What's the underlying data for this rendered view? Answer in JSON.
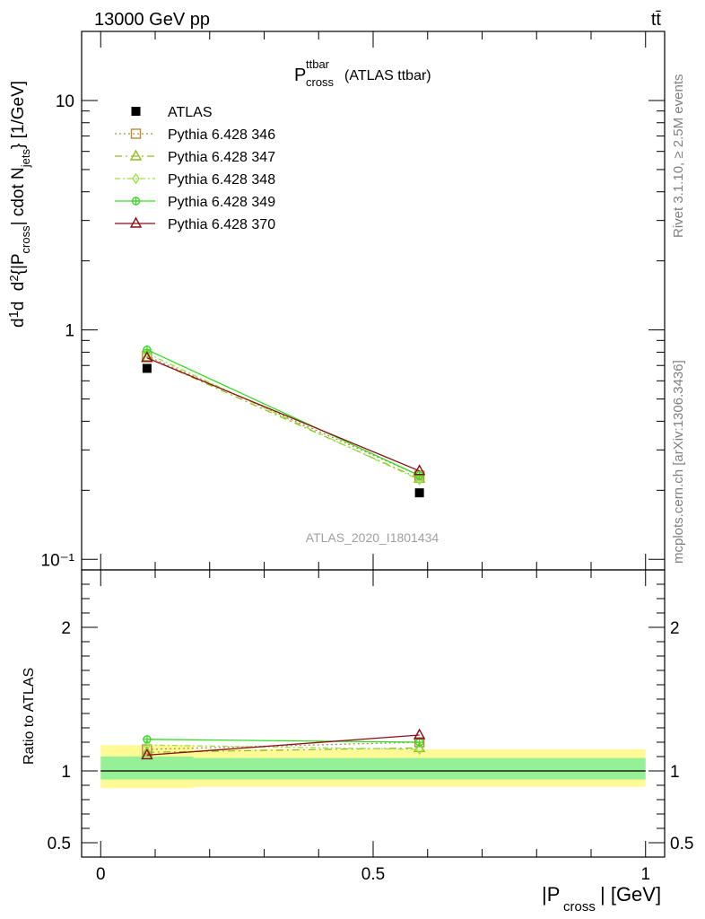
{
  "header": {
    "energy_label": "13000 GeV pp",
    "process_label": "tt̄"
  },
  "side": {
    "rivet_label": "Rivet 3.1.10, ≥ 2.5M events",
    "mcplots_label": "mcplots.cern.ch [arXiv:1306.3436]"
  },
  "chart_data": [
    {
      "type": "line",
      "panel": "main",
      "title_main": "P",
      "title_sup": "ttbar",
      "title_sub": "cross",
      "title_tail": "(ATLAS ttbar)",
      "watermark": "ATLAS_2020_I1801434",
      "ylabel": "d²σ / d|P_cross| cdot N_jets [1/GeV]",
      "yscale": "log",
      "ylim": [
        0.09,
        20
      ],
      "xlim": [
        -0.035,
        1.035
      ],
      "y_ticks": [
        {
          "value": 10,
          "label": "10"
        },
        {
          "value": 1,
          "label": "1"
        },
        {
          "value": 0.1,
          "label": "10⁻¹"
        }
      ],
      "legend_position": "top-left",
      "x": [
        0.085,
        0.585
      ],
      "series": [
        {
          "name": "ATLAS",
          "color": "#000000",
          "marker": "square",
          "dash": "",
          "values": [
            0.68,
            0.195
          ]
        },
        {
          "name": "Pythia 6.428 346",
          "color": "#b5884b",
          "marker": "open-square",
          "dash": "2,3",
          "values": [
            0.77,
            0.232
          ]
        },
        {
          "name": "Pythia 6.428 347",
          "color": "#8fbf1f",
          "marker": "open-triangle",
          "dash": "8,4,2,4",
          "values": [
            0.76,
            0.225
          ]
        },
        {
          "name": "Pythia 6.428 348",
          "color": "#9be04a",
          "marker": "open-diamond",
          "dash": "6,3,2,3",
          "values": [
            0.79,
            0.222
          ]
        },
        {
          "name": "Pythia 6.428 349",
          "color": "#33dd22",
          "marker": "open-circle-cross",
          "dash": "",
          "values": [
            0.82,
            0.232
          ]
        },
        {
          "name": "Pythia 6.428 370",
          "color": "#8b0d14",
          "marker": "open-triangle",
          "dash": "",
          "values": [
            0.755,
            0.243
          ]
        }
      ]
    },
    {
      "type": "line",
      "panel": "ratio",
      "ylabel": "Ratio to ATLAS",
      "xlabel_main": "|P",
      "xlabel_sub": "cross",
      "xlabel_tail": "| [GeV]",
      "ylim": [
        0.4,
        2.4
      ],
      "xlim": [
        -0.035,
        1.035
      ],
      "y_ticks": [
        {
          "value": 0.5,
          "label": "0.5"
        },
        {
          "value": 1,
          "label": "1"
        },
        {
          "value": 2,
          "label": "2"
        }
      ],
      "x_ticks": [
        {
          "value": 0,
          "label": "0"
        },
        {
          "value": 0.5,
          "label": "0.5"
        },
        {
          "value": 1,
          "label": "1"
        }
      ],
      "bands": [
        {
          "kind": "total-uncertainty",
          "color": "#fffa96",
          "bins": [
            [
              0,
              0.17,
              0.88,
              1.18
            ],
            [
              0.17,
              1.0,
              0.89,
              1.15
            ]
          ]
        },
        {
          "kind": "stat-uncertainty",
          "color": "#96f096",
          "bins": [
            [
              0,
              0.17,
              0.94,
              1.1
            ],
            [
              0.17,
              1.0,
              0.94,
              1.09
            ]
          ]
        }
      ],
      "reference": 1.0,
      "x": [
        0.085,
        0.585
      ],
      "series": [
        {
          "name": "Pythia 6.428 346",
          "color": "#b5884b",
          "marker": "open-square",
          "dash": "2,3",
          "values": [
            1.15,
            1.2
          ]
        },
        {
          "name": "Pythia 6.428 347",
          "color": "#8fbf1f",
          "marker": "open-triangle",
          "dash": "8,4,2,4",
          "values": [
            1.13,
            1.16
          ]
        },
        {
          "name": "Pythia 6.428 348",
          "color": "#9be04a",
          "marker": "open-diamond",
          "dash": "6,3,2,3",
          "values": [
            1.18,
            1.15
          ]
        },
        {
          "name": "Pythia 6.428 349",
          "color": "#33dd22",
          "marker": "open-circle-cross",
          "dash": "",
          "values": [
            1.22,
            1.2
          ]
        },
        {
          "name": "Pythia 6.428 370",
          "color": "#8b0d14",
          "marker": "open-triangle",
          "dash": "",
          "values": [
            1.11,
            1.25
          ]
        }
      ]
    }
  ]
}
